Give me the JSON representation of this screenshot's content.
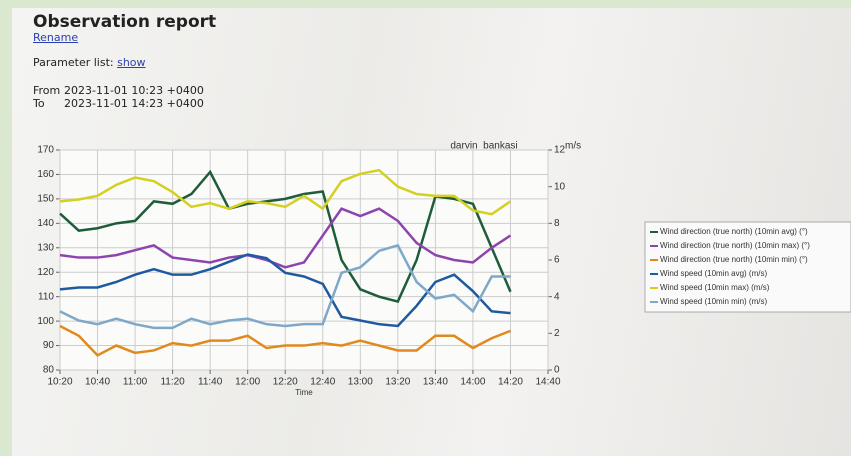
{
  "header": {
    "title": "Observation report",
    "rename": "Rename",
    "parameter_label": "Parameter list:",
    "show": "show",
    "from_label": "From",
    "from": "2023-11-01 10:23 +0400",
    "to_label": "To",
    "to": "2023-11-01 14:23 +0400"
  },
  "chart_data": {
    "type": "line",
    "title": "darvin_bankasi",
    "x_label": "Time",
    "y2_label": "m/s",
    "x": [
      "10:20",
      "10:30",
      "10:40",
      "10:50",
      "11:00",
      "11:10",
      "11:20",
      "11:30",
      "11:40",
      "11:50",
      "12:00",
      "12:10",
      "12:20",
      "12:30",
      "12:40",
      "12:50",
      "13:00",
      "13:10",
      "13:20",
      "13:30",
      "13:40",
      "13:50",
      "14:00",
      "14:10",
      "14:20"
    ],
    "xlim": [
      "10:20",
      "14:40"
    ],
    "xticks": [
      "10:20",
      "10:40",
      "11:00",
      "11:20",
      "11:40",
      "12:00",
      "12:20",
      "12:40",
      "13:00",
      "13:20",
      "13:40",
      "14:00",
      "14:20",
      "14:40"
    ],
    "ylim": [
      80,
      170
    ],
    "yticks": [
      80,
      90,
      100,
      110,
      120,
      130,
      140,
      150,
      160,
      170
    ],
    "y2lim": [
      0,
      12
    ],
    "y2ticks": [
      0,
      2,
      4,
      6,
      8,
      10,
      12
    ],
    "grid": true,
    "legend": "right",
    "series": [
      {
        "name": "Wind direction (true north) (10min avg) (°)",
        "color": "#1f5c3a",
        "values": [
          144,
          137,
          138,
          140,
          141,
          149,
          148,
          152,
          161,
          146,
          148,
          149,
          150,
          152,
          153,
          125,
          113,
          110,
          108,
          125,
          151,
          150,
          148,
          130,
          112
        ]
      },
      {
        "name": "Wind direction (true north) (10min max) (°)",
        "color": "#8e44ad",
        "values": [
          127,
          126,
          126,
          127,
          129,
          131,
          126,
          125,
          124,
          126,
          127,
          125,
          122,
          124,
          135,
          146,
          143,
          146,
          141,
          132,
          127,
          125,
          124,
          130,
          135
        ]
      },
      {
        "name": "Wind direction (true north) (10min min) (°)",
        "color": "#e08a1e",
        "values": [
          98,
          94,
          86,
          90,
          87,
          88,
          91,
          90,
          92,
          92,
          94,
          89,
          90,
          90,
          91,
          90,
          92,
          90,
          88,
          88,
          94,
          94,
          89,
          93,
          96
        ]
      },
      {
        "name": "Wind speed (10min avg) (m/s)",
        "color": "#1f5aa0",
        "axis": "y2",
        "values": [
          4.4,
          4.5,
          4.5,
          4.8,
          5.2,
          5.5,
          5.2,
          5.2,
          5.5,
          5.9,
          6.3,
          6.1,
          5.3,
          5.1,
          4.7,
          2.9,
          2.7,
          2.5,
          2.4,
          3.5,
          4.8,
          5.2,
          4.3,
          3.2,
          3.1
        ]
      },
      {
        "name": "Wind speed (10min max) (m/s)",
        "color": "#d4d020",
        "axis": "y2",
        "values": [
          9.2,
          9.3,
          9.5,
          10.1,
          10.5,
          10.3,
          9.7,
          8.9,
          9.1,
          8.8,
          9.2,
          9.1,
          8.9,
          9.5,
          8.8,
          10.3,
          10.7,
          10.9,
          10,
          9.6,
          9.5,
          9.5,
          8.7,
          8.5,
          9.2
        ]
      },
      {
        "name": "Wind speed (10min min) (m/s)",
        "color": "#7fa8c8",
        "axis": "y2",
        "values": [
          3.2,
          2.7,
          2.5,
          2.8,
          2.5,
          2.3,
          2.3,
          2.8,
          2.5,
          2.7,
          2.8,
          2.5,
          2.4,
          2.5,
          2.5,
          5.3,
          5.6,
          6.5,
          6.8,
          4.8,
          3.9,
          4.1,
          3.2,
          5.1,
          5.1
        ]
      }
    ]
  }
}
